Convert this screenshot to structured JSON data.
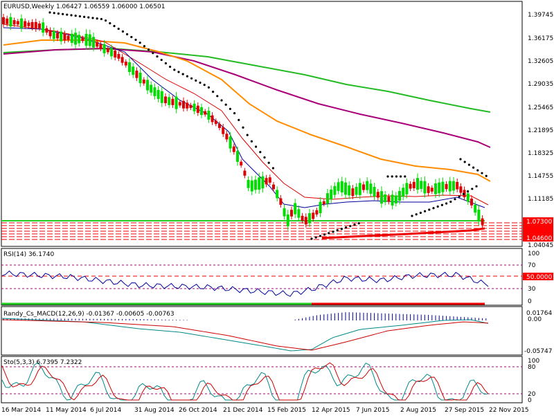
{
  "main": {
    "header": "EURUSD,Weekly  1.06427 1.06559 1.06000 1.06501",
    "yticks": [
      "1.39745",
      "1.36175",
      "1.32605",
      "1.29035",
      "1.25465",
      "1.21895",
      "1.18325",
      "1.14755",
      "1.11185"
    ],
    "price_label_a": "1.07300",
    "price_label_b": "1.04600",
    "price_label_c": "1.04045"
  },
  "rsi": {
    "header": "RSI(14) 36.1740",
    "yticks": [
      "100",
      "70",
      "30",
      "0"
    ],
    "level_label": "50.0000"
  },
  "macd": {
    "header": "Randy_Cs_MACD(12,26,9) -0.01367 -0.00605 -0.00763",
    "yticks": [
      "0.01764",
      "0.00",
      "-0.05747"
    ]
  },
  "sto": {
    "header": "Sto(5,3,3) 6.7395 7.2322",
    "yticks": [
      "100",
      "80",
      "20",
      "0"
    ]
  },
  "xaxis": {
    "labels": [
      "16 Mar 2014",
      "11 May 2014",
      "6 Jul 2014",
      "31 Aug 2014",
      "26 Oct 2014",
      "21 Dec 2014",
      "15 Feb 2015",
      "12 Apr 2015",
      "7 Jun 2015",
      "2 Aug 2015",
      "27 Sep 2015",
      "22 Nov 2015"
    ]
  },
  "colors": {
    "bull": "#00dd00",
    "bear": "#dd0000",
    "ma_fast": "#000099",
    "ma_red": "#dd0000",
    "ma_orange": "#ff8c00",
    "ma_purple": "#aa0077",
    "ma_green": "#22bb22",
    "label_red": "#ff0000",
    "grid_line": "#000000"
  }
}
